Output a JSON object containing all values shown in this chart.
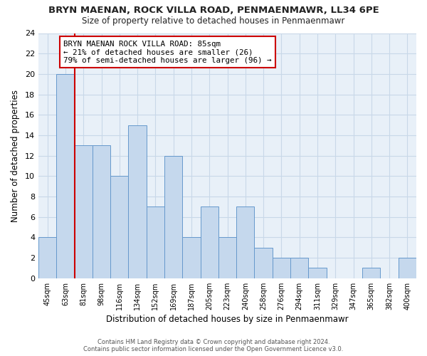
{
  "title1": "BRYN MAENAN, ROCK VILLA ROAD, PENMAENMAWR, LL34 6PE",
  "title2": "Size of property relative to detached houses in Penmaenmawr",
  "xlabel": "Distribution of detached houses by size in Penmaenmawr",
  "ylabel": "Number of detached properties",
  "categories": [
    "45sqm",
    "63sqm",
    "81sqm",
    "98sqm",
    "116sqm",
    "134sqm",
    "152sqm",
    "169sqm",
    "187sqm",
    "205sqm",
    "223sqm",
    "240sqm",
    "258sqm",
    "276sqm",
    "294sqm",
    "311sqm",
    "329sqm",
    "347sqm",
    "365sqm",
    "382sqm",
    "400sqm"
  ],
  "values": [
    4,
    20,
    13,
    13,
    10,
    15,
    7,
    12,
    4,
    7,
    4,
    7,
    3,
    2,
    2,
    1,
    0,
    0,
    1,
    0,
    2
  ],
  "bar_color": "#c5d8ed",
  "bar_edge_color": "#6699cc",
  "annotation_title": "BRYN MAENAN ROCK VILLA ROAD: 85sqm",
  "annotation_line1": "← 21% of detached houses are smaller (26)",
  "annotation_line2": "79% of semi-detached houses are larger (96) →",
  "vline_color": "#cc0000",
  "vline_x_index": 2,
  "ylim": [
    0,
    24
  ],
  "yticks": [
    0,
    2,
    4,
    6,
    8,
    10,
    12,
    14,
    16,
    18,
    20,
    22,
    24
  ],
  "footer1": "Contains HM Land Registry data © Crown copyright and database right 2024.",
  "footer2": "Contains public sector information licensed under the Open Government Licence v3.0.",
  "background_color": "#ffffff",
  "grid_color": "#c8d8e8"
}
